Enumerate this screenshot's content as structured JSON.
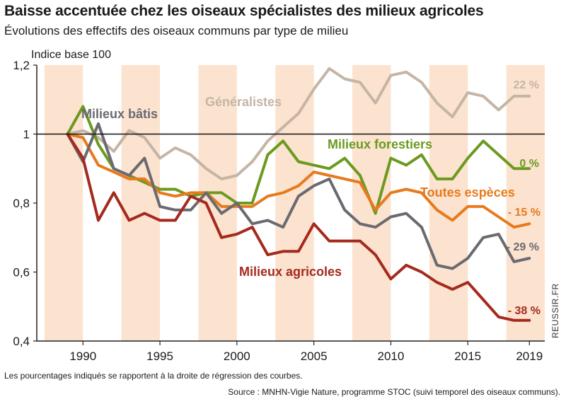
{
  "header": {
    "title": "Baisse accentuée chez les oiseaux spécialistes des milieux agricoles",
    "subtitle": "Évolutions des effectifs des oiseaux communs par type de milieu"
  },
  "footer": {
    "note": "Les pourcentages indiqués se rapportent à la droite de régression des courbes.",
    "source": "Source : MNHN-Vigie Nature, programme STOC (suivi temporel des oiseaux communs).",
    "watermark": "REUSSIR.FR"
  },
  "chart_data": {
    "type": "line",
    "title": "Baisse accentuée chez les oiseaux spécialistes des milieux agricoles",
    "subtitle": "Évolutions des effectifs des oiseaux communs par type de milieu",
    "ylabel": "Indice base 100",
    "xlabel": "",
    "xlim": [
      1987,
      2020
    ],
    "ylim": [
      0.4,
      1.2
    ],
    "yticks": [
      0.4,
      0.6,
      0.8,
      1.0,
      1.2
    ],
    "ytick_labels": [
      "0,4",
      "0,6",
      "0,8",
      "1",
      "1,2"
    ],
    "xticks": [
      1990,
      1995,
      2000,
      2005,
      2010,
      2015,
      2019
    ],
    "xtick_labels": [
      "1990",
      "1995",
      "2000",
      "2005",
      "2010",
      "2015",
      "2019"
    ],
    "reference_line": 1.0,
    "x": [
      1989,
      1990,
      1991,
      1992,
      1993,
      1994,
      1995,
      1996,
      1997,
      1998,
      1999,
      2000,
      2001,
      2002,
      2003,
      2004,
      2005,
      2006,
      2007,
      2008,
      2009,
      2010,
      2011,
      2012,
      2013,
      2014,
      2015,
      2016,
      2017,
      2018,
      2019
    ],
    "series": [
      {
        "name": "Généralistes",
        "color": "#c5b5a5",
        "label": "Généralistes",
        "end_label": "22 %",
        "values": [
          1.0,
          1.01,
          0.99,
          0.95,
          1.01,
          0.99,
          0.93,
          0.96,
          0.94,
          0.9,
          0.87,
          0.88,
          0.92,
          0.98,
          1.02,
          1.06,
          1.13,
          1.19,
          1.16,
          1.15,
          1.09,
          1.17,
          1.18,
          1.15,
          1.09,
          1.05,
          1.12,
          1.11,
          1.07,
          1.11,
          1.11
        ]
      },
      {
        "name": "Milieux forestiers",
        "color": "#6b9a1e",
        "label": "Milieux forestiers",
        "end_label": "0 %",
        "values": [
          1.0,
          1.08,
          0.97,
          0.9,
          0.88,
          0.86,
          0.84,
          0.84,
          0.82,
          0.83,
          0.83,
          0.8,
          0.8,
          0.94,
          0.98,
          0.92,
          0.91,
          0.9,
          0.93,
          0.88,
          0.77,
          0.93,
          0.91,
          0.94,
          0.87,
          0.87,
          0.93,
          0.98,
          0.94,
          0.9,
          0.9
        ]
      },
      {
        "name": "Toutes espèces",
        "color": "#e87a1d",
        "label": "Toutes espèces",
        "end_label": "- 15 %",
        "values": [
          1.0,
          0.99,
          0.91,
          0.89,
          0.87,
          0.87,
          0.83,
          0.82,
          0.83,
          0.83,
          0.79,
          0.79,
          0.79,
          0.82,
          0.83,
          0.85,
          0.89,
          0.88,
          0.87,
          0.86,
          0.78,
          0.83,
          0.84,
          0.83,
          0.78,
          0.75,
          0.79,
          0.79,
          0.76,
          0.73,
          0.74
        ]
      },
      {
        "name": "Milieux bâtis",
        "color": "#6a6a70",
        "label": "Milieux bâtis",
        "end_label": "- 29 %",
        "values": [
          1.0,
          0.92,
          1.03,
          0.9,
          0.88,
          0.93,
          0.79,
          0.78,
          0.78,
          0.83,
          0.77,
          0.8,
          0.74,
          0.75,
          0.73,
          0.82,
          0.85,
          0.87,
          0.78,
          0.74,
          0.73,
          0.76,
          0.77,
          0.73,
          0.62,
          0.61,
          0.64,
          0.7,
          0.71,
          0.63,
          0.64
        ]
      },
      {
        "name": "Milieux agricoles",
        "color": "#a52a1e",
        "label": "Milieux agricoles",
        "end_label": "- 38 %",
        "values": [
          1.0,
          0.93,
          0.75,
          0.83,
          0.75,
          0.77,
          0.75,
          0.75,
          0.82,
          0.8,
          0.7,
          0.71,
          0.73,
          0.65,
          0.66,
          0.66,
          0.74,
          0.69,
          0.69,
          0.69,
          0.65,
          0.58,
          0.62,
          0.6,
          0.57,
          0.55,
          0.57,
          0.52,
          0.47,
          0.46,
          0.46
        ]
      }
    ],
    "colors": {
      "band": "#fbe3d0",
      "axis": "#222222",
      "reference_line": "#111111"
    }
  }
}
